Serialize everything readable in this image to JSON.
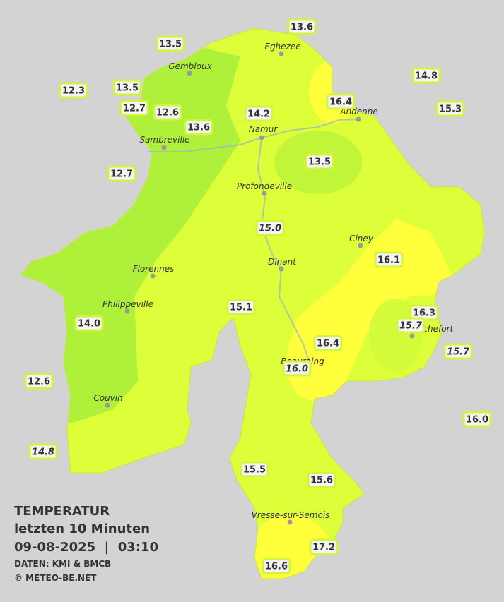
{
  "stations": [
    "13.6",
    "13.5",
    "12.3",
    "13.5",
    "12.7",
    "12.6",
    "13.6",
    "14.2",
    "16.4",
    "14.8",
    "15.3",
    "13.5",
    "12.7",
    "15.0",
    "16.1",
    "15.1",
    "16.3",
    "15.7",
    "14.0",
    "16.4",
    "15.7",
    "16.0",
    "12.6",
    "16.0",
    "14.8",
    "15.5",
    "15.6",
    "17.2",
    "16.6"
  ],
  "cities": [
    "Eghezee",
    "Gembloux",
    "Andenne",
    "Namur",
    "Sambreville",
    "Profondeville",
    "Ciney",
    "Dinant",
    "Florennes",
    "Philippeville",
    "Rochefort",
    "Beauraing",
    "Couvin",
    "Vresse-sur-Semois"
  ],
  "legend": {
    "title": "TEMPERATUR",
    "period": "letzten 10 Minuten",
    "datetime": "09-08-2025  |  03:10",
    "source": "DATEN: KMI & BMCB",
    "copyright": "© METEO-BE.NET"
  }
}
